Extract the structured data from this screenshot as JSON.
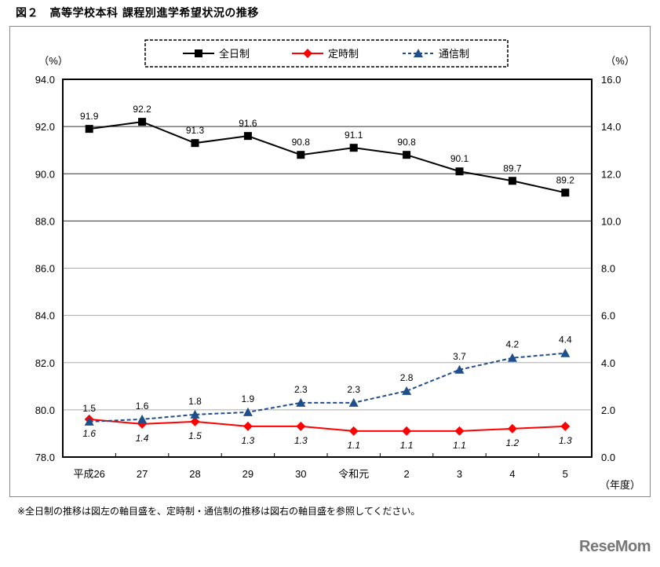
{
  "figure": {
    "title": "図２　高等学校本科 課程別進学希望状況の推移",
    "note": "※全日制の推移は図左の軸目盛を、定時制・通信制の推移は図右の軸目盛を参照してください。",
    "logo": "ReseMom"
  },
  "chart_data": {
    "type": "line",
    "title": "高等学校本科 課程別進学希望状況の推移",
    "xlabel": "（年度）",
    "ylabel_left": "（%）",
    "ylabel_right": "（%）",
    "categories": [
      "平成26",
      "27",
      "28",
      "29",
      "30",
      "令和元",
      "2",
      "3",
      "4",
      "5"
    ],
    "y_left": {
      "range": [
        78.0,
        94.0
      ],
      "ticks": [
        "94.0",
        "92.0",
        "90.0",
        "88.0",
        "86.0",
        "84.0",
        "82.0",
        "80.0",
        "78.0"
      ]
    },
    "y_right": {
      "range": [
        0.0,
        16.0
      ],
      "ticks": [
        "16.0",
        "14.0",
        "12.0",
        "10.0",
        "8.0",
        "6.0",
        "4.0",
        "2.0",
        "0.0"
      ]
    },
    "grid": true,
    "legend_position": "top-center",
    "series": [
      {
        "name": "全日制",
        "axis": "left",
        "color": "#000000",
        "marker": "square",
        "dash": "solid",
        "values": [
          91.9,
          92.2,
          91.3,
          91.6,
          90.8,
          91.1,
          90.8,
          90.1,
          89.7,
          89.2
        ],
        "labels": [
          "91.9",
          "92.2",
          "91.3",
          "91.6",
          "90.8",
          "91.1",
          "90.8",
          "90.1",
          "89.7",
          "89.2"
        ]
      },
      {
        "name": "定時制",
        "axis": "right",
        "color": "#ff0000",
        "marker": "diamond",
        "dash": "solid",
        "values": [
          1.6,
          1.4,
          1.5,
          1.3,
          1.3,
          1.1,
          1.1,
          1.1,
          1.2,
          1.3
        ],
        "labels": [
          "1.6",
          "1.4",
          "1.5",
          "1.3",
          "1.3",
          "1.1",
          "1.1",
          "1.1",
          "1.2",
          "1.3"
        ]
      },
      {
        "name": "通信制",
        "axis": "right",
        "color": "#1f4e8c",
        "marker": "triangle",
        "dash": "dashed",
        "values": [
          1.5,
          1.6,
          1.8,
          1.9,
          2.3,
          2.3,
          2.8,
          3.7,
          4.2,
          4.4
        ],
        "labels": [
          "1.5",
          "1.6",
          "1.8",
          "1.9",
          "2.3",
          "2.3",
          "2.8",
          "3.7",
          "4.2",
          "4.4"
        ]
      }
    ]
  }
}
